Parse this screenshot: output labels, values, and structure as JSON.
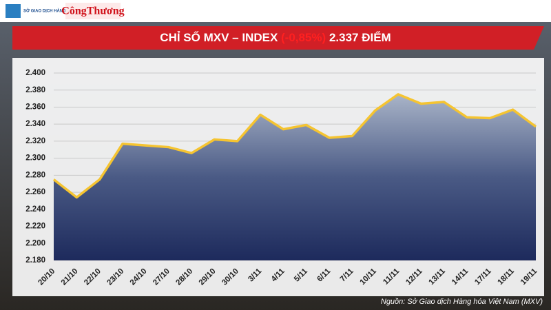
{
  "header": {
    "logo_left": "SỞ GIAO DỊCH HÀNG HÓA VIỆT NAM",
    "logo_right": "CôngThương"
  },
  "chart_data": {
    "type": "area",
    "title": "CHỈ SỐ MXV – INDEX",
    "title_change": "(-0,85%)",
    "title_value": "2.337 ĐIỂM",
    "source": "Nguồn: Sở Giao dịch Hàng hóa Việt Nam (MXV)",
    "categories": [
      "20/10",
      "21/10",
      "22/10",
      "23/10",
      "24/10",
      "27/10",
      "28/10",
      "29/10",
      "30/10",
      "3/11",
      "4/11",
      "5/11",
      "6/11",
      "7/11",
      "10/11",
      "11/11",
      "12/11",
      "13/11",
      "14/11",
      "17/11",
      "18/11",
      "19/11"
    ],
    "values": [
      2275,
      2254,
      2275,
      2317,
      2315,
      2313,
      2306,
      2322,
      2320,
      2351,
      2334,
      2339,
      2324,
      2326,
      2356,
      2375,
      2364,
      2366,
      2348,
      2347,
      2357,
      2337
    ],
    "color": "#f5c431",
    "ylim": [
      2180,
      2400
    ],
    "yticks": [
      {
        "value": 2180,
        "label": "2.180"
      },
      {
        "value": 2200,
        "label": "2.200"
      },
      {
        "value": 2220,
        "label": "2.220"
      },
      {
        "value": 2240,
        "label": "2.240"
      },
      {
        "value": 2260,
        "label": "2.260"
      },
      {
        "value": 2280,
        "label": "2.280"
      },
      {
        "value": 2300,
        "label": "2.300"
      },
      {
        "value": 2320,
        "label": "2.320"
      },
      {
        "value": 2340,
        "label": "2.340"
      },
      {
        "value": 2360,
        "label": "2.360"
      },
      {
        "value": 2380,
        "label": "2.380"
      },
      {
        "value": 2400,
        "label": "2.400"
      }
    ],
    "grid": true
  }
}
